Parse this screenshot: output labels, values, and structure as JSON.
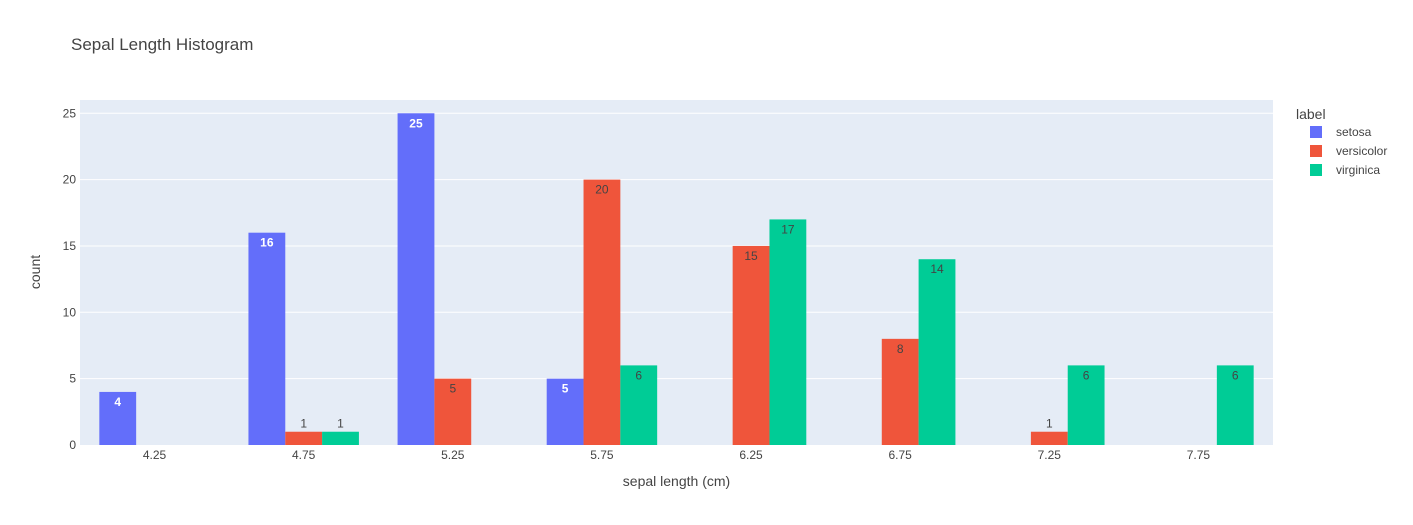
{
  "chart_data": {
    "type": "bar",
    "title": "Sepal Length Histogram",
    "xlabel": "sepal length (cm)",
    "ylabel": "count",
    "categories": [
      "4.25",
      "4.75",
      "5.25",
      "5.75",
      "6.25",
      "6.75",
      "7.25",
      "7.75"
    ],
    "series": [
      {
        "name": "setosa",
        "color": "#636efa",
        "values": [
          4,
          16,
          25,
          5,
          0,
          0,
          0,
          0
        ]
      },
      {
        "name": "versicolor",
        "color": "#ef553b",
        "values": [
          0,
          1,
          5,
          20,
          15,
          8,
          1,
          0
        ]
      },
      {
        "name": "virginica",
        "color": "#00cc96",
        "values": [
          0,
          1,
          0,
          6,
          17,
          14,
          6,
          6
        ]
      }
    ],
    "ylim": [
      0,
      26
    ],
    "yticks": [
      "0",
      "5",
      "10",
      "15",
      "20",
      "25"
    ],
    "legend_title": "label",
    "legend_position": "top-right",
    "grid": true,
    "plot_background": "#e5ecf6"
  }
}
